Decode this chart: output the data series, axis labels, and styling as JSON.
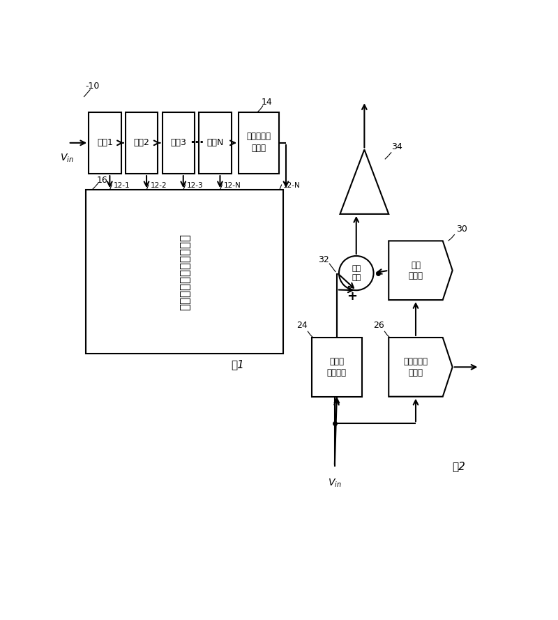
{
  "bg_color": "#ffffff",
  "fig1": {
    "label": "图1",
    "system_label": "-10",
    "dccu_label": "16",
    "dccu_text": "数字纠错及时间校正单元",
    "flash_label": "14",
    "flash_text_line1": "闪存式模板",
    "flash_text_line2": "转换器",
    "stages": [
      "步骤1",
      "步骤2",
      "步骤3",
      "步骤N"
    ],
    "stage_outputs": [
      "12-1",
      "12-2",
      "12-3",
      "12-N"
    ],
    "vin_label": "$V_{in}$",
    "fig1_label": "图1"
  },
  "fig2": {
    "label": "图2",
    "node32_label": "32",
    "node34_label": "34",
    "node24_label": "24",
    "node26_label": "26",
    "node30_label": "30",
    "summer_text_line1": "求和",
    "summer_text_line2": "节点",
    "sh_text_line1": "取样与",
    "sh_text_line2": "保持单元",
    "flash_text_line1": "闪存式模板",
    "flash_text_line2": "转换器",
    "dac_text_line1": "数模",
    "dac_text_line2": "转换器",
    "vin_label": "$V_{in}$",
    "fig2_label": "图2"
  }
}
